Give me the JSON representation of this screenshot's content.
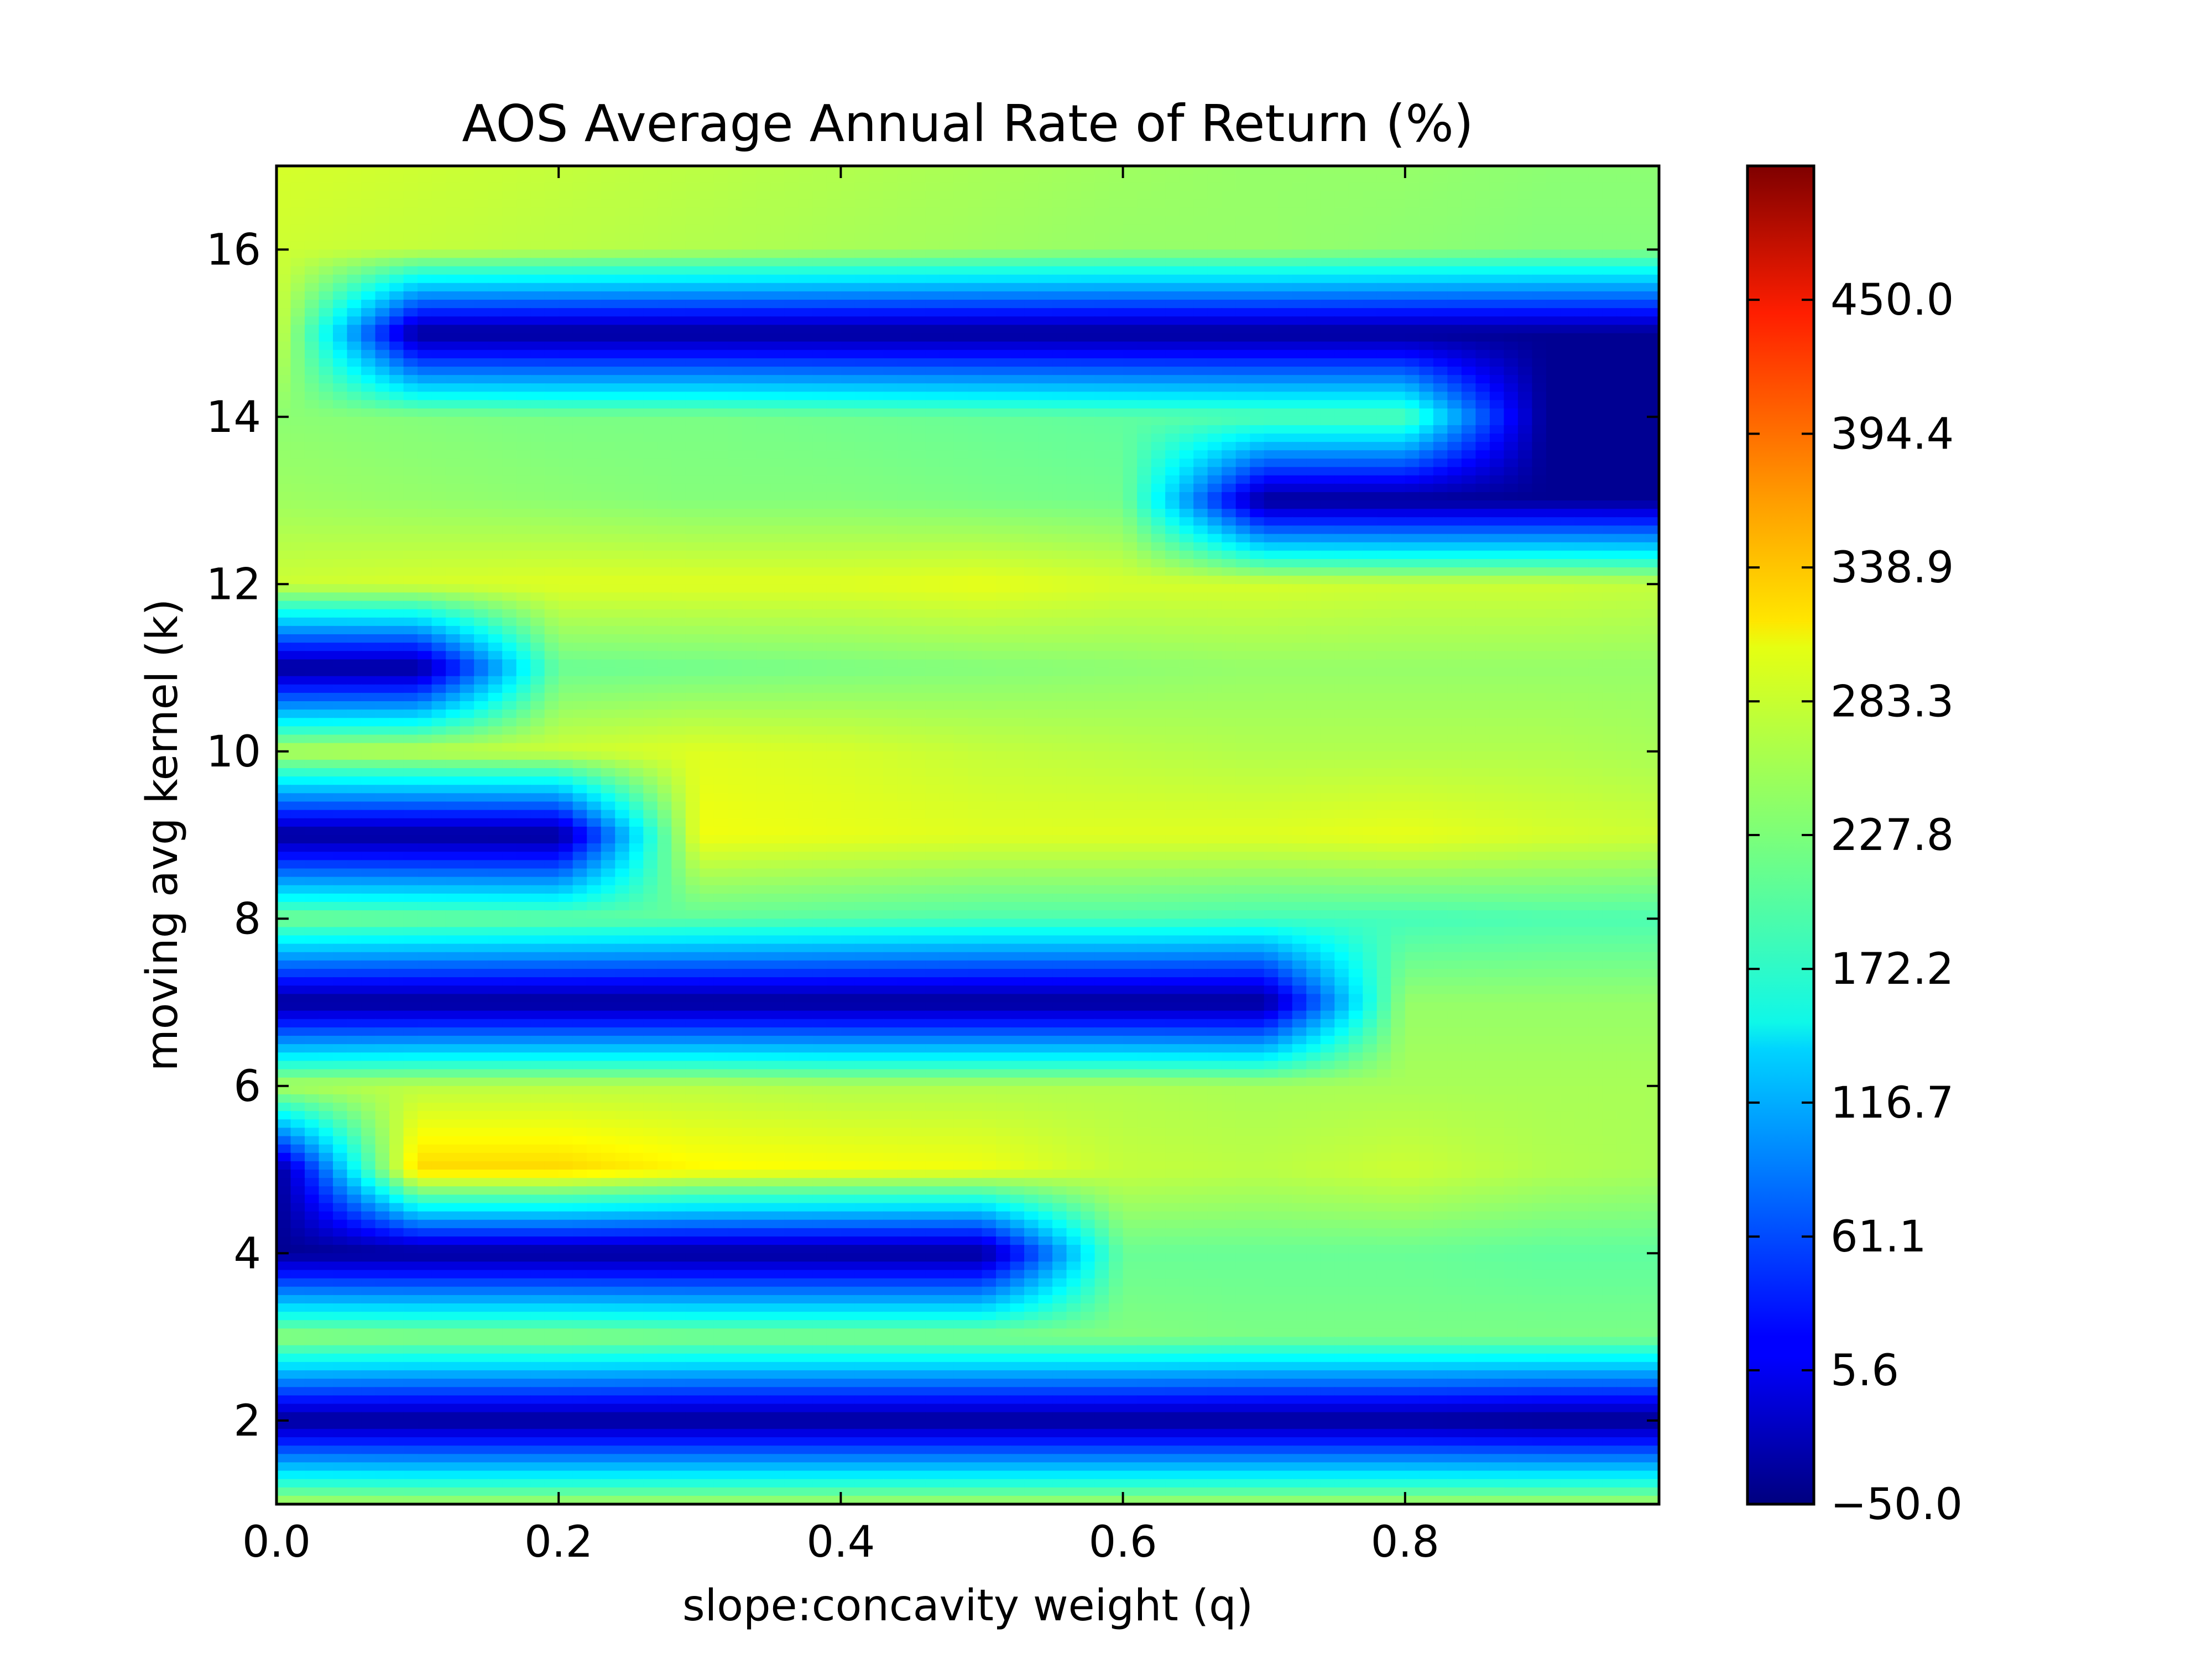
{
  "chart_data": {
    "type": "heatmap",
    "subtype": "filled-contour",
    "title": "AOS Average Annual Rate of Return (%)",
    "xlabel": "slope:concavity weight (q)",
    "ylabel": "moving avg kernel (k)",
    "xlim": [
      0.0,
      0.98
    ],
    "ylim": [
      1,
      17
    ],
    "x_ticks": [
      0.0,
      0.2,
      0.4,
      0.6,
      0.8
    ],
    "x_tick_labels": [
      "0.0",
      "0.2",
      "0.4",
      "0.6",
      "0.8"
    ],
    "y_ticks": [
      2,
      4,
      6,
      8,
      10,
      12,
      14,
      16
    ],
    "y_tick_labels": [
      "2",
      "4",
      "6",
      "8",
      "10",
      "12",
      "14",
      "16"
    ],
    "colormap": "jet",
    "colorbar": {
      "range": [
        -50.0,
        505.6
      ],
      "ticks": [
        -50.0,
        5.6,
        61.1,
        116.7,
        172.2,
        227.8,
        283.3,
        338.9,
        394.4,
        450.0
      ],
      "tick_labels": [
        "−50.0",
        "5.6",
        "61.1",
        "116.7",
        "172.2",
        "227.8",
        "283.3",
        "338.9",
        "394.4",
        "450.0"
      ]
    },
    "approx_values": {
      "x": [
        0.0,
        0.1,
        0.2,
        0.3,
        0.4,
        0.5,
        0.6,
        0.7,
        0.8,
        0.9,
        0.98
      ],
      "y": [
        1,
        2,
        3,
        4,
        5,
        6,
        7,
        8,
        9,
        10,
        11,
        12,
        13,
        14,
        15,
        16,
        17
      ],
      "z": [
        [
          255,
          250,
          250,
          250,
          250,
          250,
          250,
          250,
          250,
          250,
          250
        ],
        [
          -40,
          -40,
          -40,
          -40,
          -40,
          -40,
          -40,
          -40,
          -40,
          -45,
          -45
        ],
        [
          240,
          235,
          235,
          230,
          230,
          230,
          230,
          225,
          225,
          225,
          225
        ],
        [
          -40,
          -40,
          -40,
          -40,
          -40,
          -40,
          215,
          215,
          215,
          210,
          210
        ],
        [
          -40,
          320,
          320,
          300,
          295,
          290,
          265,
          260,
          270,
          255,
          250
        ],
        [
          255,
          260,
          260,
          260,
          255,
          255,
          255,
          250,
          250,
          250,
          250
        ],
        [
          -40,
          -40,
          -40,
          -40,
          -40,
          -40,
          -40,
          -40,
          240,
          240,
          240
        ],
        [
          225,
          220,
          215,
          210,
          205,
          200,
          200,
          195,
          195,
          200,
          200
        ],
        [
          -40,
          -40,
          -40,
          290,
          285,
          280,
          280,
          280,
          285,
          275,
          270
        ],
        [
          260,
          265,
          270,
          280,
          275,
          265,
          260,
          255,
          255,
          255,
          250
        ],
        [
          -40,
          -40,
          215,
          220,
          225,
          230,
          235,
          240,
          240,
          240,
          240
        ],
        [
          270,
          275,
          280,
          280,
          280,
          285,
          275,
          275,
          270,
          270,
          265
        ],
        [
          245,
          240,
          235,
          230,
          230,
          225,
          220,
          -40,
          -40,
          -40,
          -40
        ],
        [
          235,
          230,
          225,
          225,
          220,
          215,
          210,
          205,
          205,
          -40,
          -40
        ],
        [
          270,
          -40,
          -40,
          -40,
          -40,
          -40,
          -40,
          -40,
          -40,
          -40,
          -40
        ],
        [
          270,
          265,
          260,
          255,
          250,
          245,
          240,
          240,
          235,
          230,
          230
        ],
        [
          275,
          270,
          265,
          260,
          255,
          250,
          245,
          240,
          240,
          235,
          235
        ]
      ]
    }
  }
}
